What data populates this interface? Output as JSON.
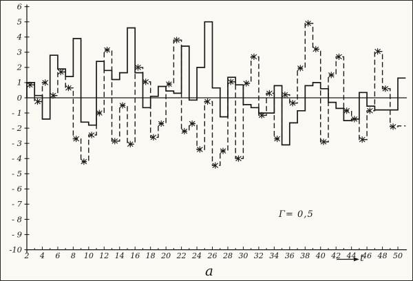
{
  "figure": {
    "annotation": "Γ= 0,5",
    "caption": "a",
    "x_axis_arrow_label": "t",
    "ink_color": "#1b1916",
    "paper_color": "#faf9f4"
  },
  "chart_data": {
    "type": "line",
    "subtype": "step",
    "title": "",
    "xlabel": "t",
    "ylabel": "",
    "annotation": "Γ= 0,5",
    "caption": "a",
    "grid": false,
    "legend": "none",
    "x_start": 2,
    "x_step": 1,
    "xlim": [
      2,
      51
    ],
    "ylim": [
      -10,
      6
    ],
    "x_tick_labels": [
      "2",
      "4",
      "6",
      "8",
      "10",
      "12",
      "14",
      "16",
      "18",
      "20",
      "22",
      "24",
      "26",
      "28",
      "30",
      "32",
      "34",
      "36",
      "38",
      "40",
      "42",
      "44",
      "46",
      "48",
      "50"
    ],
    "y_tick_labels": [
      "6",
      "5",
      "4",
      "3",
      "2",
      "1",
      "0",
      "- 1",
      "- 2",
      "- 3",
      "- 4",
      "- 5",
      "- 6",
      "- 7",
      "- 8",
      "- 9",
      "-10"
    ],
    "y_tick_values": [
      6,
      5,
      4,
      3,
      2,
      1,
      0,
      -1,
      -2,
      -3,
      -4,
      -5,
      -6,
      -7,
      -8,
      -9,
      -10
    ],
    "series": [
      {
        "name": "solid-step-series",
        "line_style": "solid",
        "marker": "none",
        "values": [
          1.0,
          0.15,
          -1.4,
          2.8,
          1.9,
          1.4,
          3.9,
          -1.6,
          -1.8,
          2.4,
          1.8,
          1.2,
          1.65,
          4.6,
          1.65,
          -0.65,
          0.1,
          0.75,
          0.45,
          0.3,
          3.4,
          -0.15,
          2.0,
          5.0,
          0.65,
          -1.25,
          1.35,
          0.85,
          -0.45,
          -0.65,
          -1.0,
          -1.0,
          0.8,
          -3.1,
          -1.65,
          -0.85,
          0.8,
          1.0,
          0.6,
          -0.3,
          -0.7,
          -1.5,
          -1.4,
          0.35,
          -0.55,
          -0.8,
          -0.8,
          -0.8,
          1.3
        ]
      },
      {
        "name": "dashed-step-series",
        "line_style": "dashed",
        "marker": "asterisk",
        "values": [
          0.85,
          -0.25,
          1.0,
          0.15,
          1.7,
          0.65,
          -2.7,
          -4.2,
          -2.45,
          -1.0,
          3.15,
          -2.85,
          -0.5,
          -3.05,
          2.0,
          1.05,
          -2.6,
          -1.7,
          0.9,
          3.8,
          -2.2,
          -1.7,
          -3.4,
          -0.25,
          -4.45,
          -3.5,
          1.05,
          -4.0,
          0.95,
          2.7,
          -1.15,
          0.3,
          -2.7,
          0.2,
          -0.35,
          1.95,
          4.9,
          3.2,
          -2.9,
          1.5,
          2.7,
          -0.85,
          -1.4,
          -2.75,
          -0.85,
          3.05,
          0.6,
          -1.9,
          -1.85
        ]
      }
    ]
  }
}
